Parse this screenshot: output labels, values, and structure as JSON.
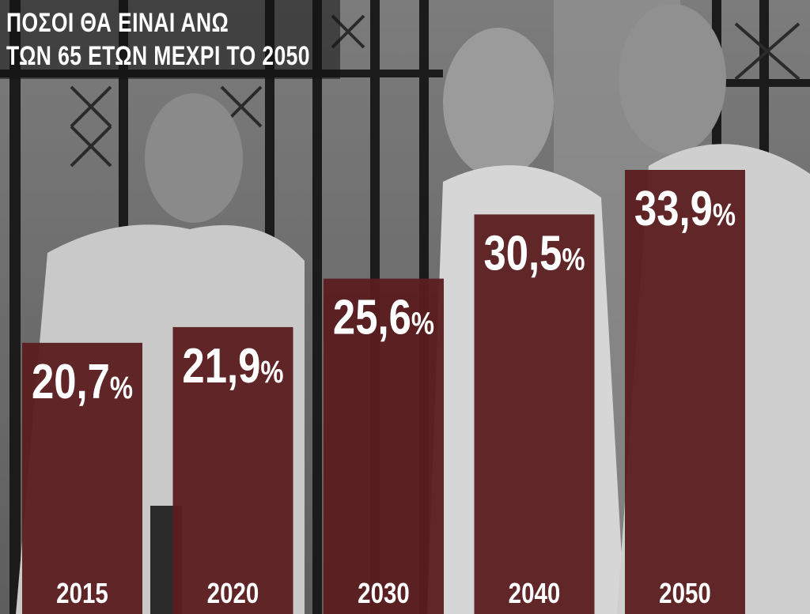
{
  "title": {
    "line1": "ΠΟΣΟΙ ΘΑ ΕΙΝΑΙ ΑΝΩ",
    "line2": "ΤΩΝ 65 ΕΤΩΝ ΜΕΧΡΙ ΤΟ 2050"
  },
  "colors": {
    "bar": "#5a1c1f",
    "text": "#ffffff",
    "title_band": "#121212"
  },
  "chart_data": {
    "type": "bar",
    "title": "ΠΟΣΟΙ ΘΑ ΕΙΝΑΙ ΑΝΩ ΤΩΝ 65 ΕΤΩΝ ΜΕΧΡΙ ΤΟ 2050",
    "categories": [
      "2015",
      "2020",
      "2030",
      "2040",
      "2050"
    ],
    "values": [
      20.7,
      21.9,
      25.6,
      30.5,
      33.9
    ],
    "value_labels": [
      "20,7",
      "21,9",
      "25,6",
      "30,5",
      "33,9"
    ],
    "unit": "%",
    "ylim": [
      0,
      40
    ],
    "grid": false,
    "legend": "none"
  }
}
